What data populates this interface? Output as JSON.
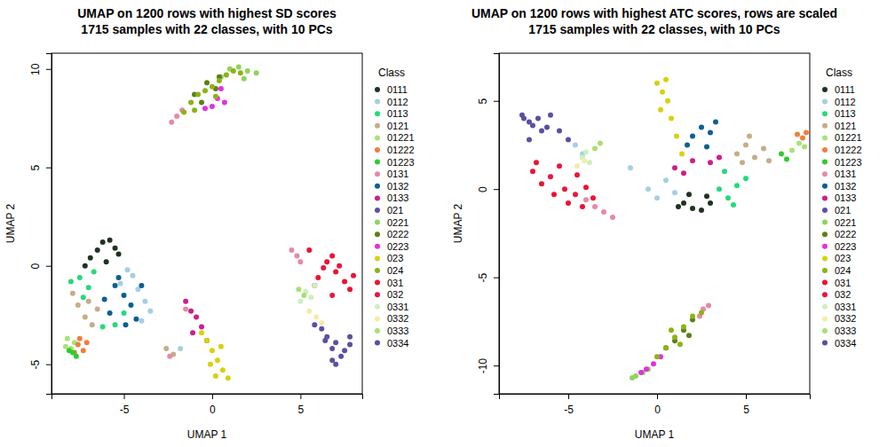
{
  "chart_data": [
    {
      "type": "scatter",
      "title": "UMAP on 1200 rows with highest SD scores",
      "subtitle": "1715 samples with 22 classes, with 10 PCs",
      "x_label": "UMAP 1",
      "y_label": "UMAP 2",
      "legend_title": "Class",
      "legend": "right",
      "marker": "circle",
      "xlim": [
        -9.1,
        8.5
      ],
      "ylim": [
        -6.5,
        10.8
      ],
      "xticks": [
        -5,
        0,
        5
      ],
      "yticks": [
        -5,
        0,
        5,
        10
      ],
      "series": [
        {
          "name": "0111",
          "color": "#1f3320",
          "x": [
            -6.2,
            -5.8,
            -5.5,
            -6.5,
            -6.9,
            -5.3,
            -6.0,
            -7.2
          ],
          "values": [
            1.2,
            1.3,
            0.9,
            0.8,
            0.4,
            0.6,
            0.2,
            0.0
          ]
        },
        {
          "name": "0112",
          "color": "#a6cee3",
          "x": [
            -4.5,
            -4.2,
            -3.8,
            -4.8,
            -3.5,
            -4.0,
            -1.8,
            -5.2
          ],
          "values": [
            -0.5,
            -1.2,
            -1.8,
            -0.2,
            -2.3,
            -2.8,
            -4.2,
            -0.9
          ]
        },
        {
          "name": "0113",
          "color": "#26d97a",
          "x": [
            -7.5,
            -7.0,
            -6.7,
            -8.0,
            -7.3,
            -5.5,
            -6.2,
            -5.0
          ],
          "values": [
            -0.6,
            -1.1,
            -0.3,
            -0.8,
            -1.6,
            -3.0,
            -3.1,
            -2.4
          ]
        },
        {
          "name": "0121",
          "color": "#c4ae88",
          "x": [
            -7.6,
            -7.2,
            -6.8,
            -7.9,
            -6.5,
            -7.0,
            -2.6,
            -2.2
          ],
          "values": [
            -2.0,
            -2.6,
            -3.0,
            -1.4,
            -2.2,
            -1.8,
            -4.2,
            -4.5
          ]
        },
        {
          "name": "01221",
          "color": "#a8e37a",
          "x": [
            -8.2,
            -8.0,
            -7.8,
            -8.3
          ],
          "values": [
            -3.7,
            -4.2,
            -3.9,
            -4.1
          ]
        },
        {
          "name": "01222",
          "color": "#f07f3a",
          "x": [
            -7.6,
            -7.3,
            -7.8,
            -7.1,
            -7.5
          ],
          "values": [
            -4.0,
            -4.3,
            -4.4,
            -3.9,
            -3.7
          ]
        },
        {
          "name": "01223",
          "color": "#2fcc2f",
          "x": [
            -7.9,
            -7.7,
            -8.1
          ],
          "values": [
            -4.4,
            -4.6,
            -4.3
          ]
        },
        {
          "name": "0131",
          "color": "#e58aa6",
          "x": [
            -2.3,
            -2.0,
            -1.7,
            4.5,
            4.8,
            5.0,
            -2.4,
            -1.5
          ],
          "values": [
            7.3,
            7.6,
            7.9,
            0.8,
            0.5,
            0.2,
            -4.6,
            -2.2
          ]
        },
        {
          "name": "0132",
          "color": "#0a5f94",
          "x": [
            -5.5,
            -5.0,
            -4.6,
            -5.8,
            -4.3,
            -4.9,
            -5.3,
            -6.1,
            -4.0
          ],
          "values": [
            -1.0,
            -1.5,
            -2.0,
            -2.4,
            -2.7,
            -3.0,
            -0.6,
            -1.7,
            -1.0
          ]
        },
        {
          "name": "0133",
          "color": "#cc1f8a",
          "x": [
            -1.5,
            -1.2,
            -0.9,
            -0.6,
            -1.1,
            -0.3
          ],
          "values": [
            -1.8,
            -2.3,
            -2.6,
            -3.1,
            -3.4,
            -3.8
          ]
        },
        {
          "name": "021",
          "color": "#5e4fa2",
          "x": [
            6.5,
            7.0,
            7.5,
            6.2,
            6.8,
            7.8,
            5.8
          ],
          "values": [
            -3.6,
            -3.9,
            -4.3,
            -3.2,
            -4.8,
            -3.6,
            -3.0
          ]
        },
        {
          "name": "0221",
          "color": "#8fd45a",
          "x": [
            1.0,
            1.5,
            2.0,
            2.5,
            0.5,
            1.8
          ],
          "values": [
            10.0,
            10.1,
            9.9,
            9.8,
            9.6,
            9.5
          ]
        },
        {
          "name": "0222",
          "color": "#5c7f1a",
          "x": [
            -1.0,
            -0.3,
            0.4,
            -0.6,
            0.2
          ],
          "values": [
            8.7,
            9.3,
            9.6,
            8.3,
            9.0
          ]
        },
        {
          "name": "0223",
          "color": "#e032e0",
          "x": [
            0.0,
            0.3,
            0.7,
            -0.4,
            0.5
          ],
          "values": [
            8.1,
            8.5,
            8.3,
            8.0,
            9.0
          ]
        },
        {
          "name": "023",
          "color": "#d9d010",
          "x": [
            -0.3,
            0.0,
            0.3,
            0.6,
            -0.6,
            0.2,
            0.9,
            -0.1,
            0.5
          ],
          "values": [
            -3.8,
            -4.3,
            -4.8,
            -5.3,
            -3.4,
            -5.6,
            -5.7,
            -5.0,
            -4.1
          ]
        },
        {
          "name": "024",
          "color": "#8cb314",
          "x": [
            -1.6,
            -1.2,
            -0.8,
            -0.4,
            0.0,
            0.4,
            0.8,
            1.2,
            -1.0,
            0.2,
            1.6
          ],
          "values": [
            7.8,
            8.3,
            8.7,
            8.9,
            9.1,
            9.4,
            9.7,
            9.9,
            7.9,
            8.6,
            9.8
          ]
        },
        {
          "name": "031",
          "color": "#ee1133",
          "x": [
            6.5,
            7.0,
            7.5,
            6.0,
            7.8,
            6.8,
            5.5
          ],
          "values": [
            0.2,
            -0.3,
            -0.8,
            -0.6,
            -1.2,
            0.5,
            0.8
          ]
        },
        {
          "name": "032",
          "color": "#e8163d",
          "x": [
            6.3,
            7.2,
            5.8,
            8.0,
            6.8
          ],
          "values": [
            -0.1,
            0.0,
            -1.0,
            -0.5,
            -1.5
          ]
        },
        {
          "name": "0331",
          "color": "#ccf0c0",
          "x": [
            5.3,
            5.6,
            5.0,
            5.8
          ],
          "values": [
            -1.3,
            -1.6,
            -1.8,
            -1.0
          ]
        },
        {
          "name": "0332",
          "color": "#f5eba8",
          "x": [
            5.5,
            5.9,
            6.2
          ],
          "values": [
            -2.3,
            -2.6,
            -2.9
          ]
        },
        {
          "name": "0333",
          "color": "#a8e070",
          "x": [
            5.2,
            4.9
          ],
          "values": [
            -1.5,
            -1.2
          ]
        },
        {
          "name": "0334",
          "color": "#5d4ea0",
          "x": [
            6.8,
            7.3,
            7.8,
            6.4,
            7.0
          ],
          "values": [
            -4.2,
            -4.6,
            -4.0,
            -3.8,
            -5.0
          ]
        }
      ]
    },
    {
      "type": "scatter",
      "title": "UMAP on 1200 rows with highest ATC scores, rows are scaled",
      "subtitle": "1715 samples with 22 classes, with 10 PCs",
      "x_label": "UMAP 1",
      "y_label": "UMAP 2",
      "legend_title": "Class",
      "legend": "right",
      "marker": "circle",
      "xlim": [
        -8.9,
        8.6
      ],
      "ylim": [
        -11.6,
        7.7
      ],
      "xticks": [
        -5,
        0,
        5
      ],
      "yticks": [
        -10,
        -5,
        0,
        5
      ],
      "series": [
        {
          "name": "0111",
          "color": "#1f3320",
          "x": [
            1.5,
            2.0,
            2.5,
            3.0,
            1.8,
            2.8,
            1.2
          ],
          "values": [
            -0.8,
            -1.1,
            -1.2,
            -0.8,
            -0.3,
            -0.4,
            -1.0
          ]
        },
        {
          "name": "0112",
          "color": "#a6cee3",
          "x": [
            -4.6,
            -4.2,
            -0.5,
            0.0,
            0.5,
            1.0,
            -1.5
          ],
          "values": [
            2.5,
            2.0,
            0.0,
            -0.5,
            0.5,
            -0.2,
            1.2
          ]
        },
        {
          "name": "0113",
          "color": "#26d97a",
          "x": [
            3.5,
            4.0,
            4.5,
            5.0,
            3.8,
            4.3
          ],
          "values": [
            0.0,
            -0.5,
            0.2,
            0.6,
            1.0,
            -0.9
          ]
        },
        {
          "name": "0121",
          "color": "#c4ae88",
          "x": [
            4.5,
            5.0,
            5.5,
            6.0,
            5.2,
            4.8,
            6.3
          ],
          "values": [
            2.0,
            2.5,
            1.8,
            2.3,
            3.0,
            1.5,
            1.6
          ]
        },
        {
          "name": "01221",
          "color": "#a8e37a",
          "x": [
            7.6,
            8.0,
            8.3
          ],
          "values": [
            2.2,
            2.6,
            2.4
          ]
        },
        {
          "name": "01222",
          "color": "#f07f3a",
          "x": [
            7.9,
            8.2,
            8.4
          ],
          "values": [
            3.1,
            2.9,
            3.2
          ]
        },
        {
          "name": "01223",
          "color": "#2fcc2f",
          "x": [
            7.0,
            7.3
          ],
          "values": [
            2.0,
            1.7
          ]
        },
        {
          "name": "0131",
          "color": "#e58aa6",
          "x": [
            -3.5,
            -3.0,
            -2.5,
            -4.0,
            2.6,
            2.9,
            2.4
          ],
          "values": [
            -1.0,
            -1.3,
            -1.6,
            -0.6,
            -6.8,
            -6.6,
            -7.2
          ]
        },
        {
          "name": "0132",
          "color": "#0a5f94",
          "x": [
            2.0,
            2.5,
            3.0,
            1.7,
            2.8,
            3.3
          ],
          "values": [
            3.0,
            3.5,
            3.2,
            2.5,
            2.4,
            3.8
          ]
        },
        {
          "name": "0133",
          "color": "#cc1f8a",
          "x": [
            1.0,
            1.5,
            3.0,
            3.5,
            2.0
          ],
          "values": [
            1.2,
            0.9,
            1.5,
            1.8,
            1.6
          ]
        },
        {
          "name": "021",
          "color": "#5e4fa2",
          "x": [
            -7.5,
            -7.0,
            -6.5,
            -6.0,
            -7.2
          ],
          "values": [
            4.0,
            3.6,
            3.3,
            4.2,
            2.8
          ]
        },
        {
          "name": "0221",
          "color": "#8fd45a",
          "x": [
            -1.2,
            -0.8,
            -1.4,
            -0.5
          ],
          "values": [
            -10.6,
            -10.4,
            -10.7,
            -10.2
          ]
        },
        {
          "name": "0222",
          "color": "#5c7f1a",
          "x": [
            1.0,
            1.5,
            2.0,
            0.5,
            1.8
          ],
          "values": [
            -8.6,
            -8.0,
            -7.4,
            -9.0,
            -8.3
          ]
        },
        {
          "name": "0223",
          "color": "#e032e0",
          "x": [
            -0.6,
            -0.2,
            0.2,
            -0.9
          ],
          "values": [
            -10.2,
            -9.9,
            -9.5,
            -10.4
          ]
        },
        {
          "name": "023",
          "color": "#d9d010",
          "x": [
            0.0,
            0.3,
            0.6,
            0.2,
            0.8,
            1.1,
            1.4,
            0.5
          ],
          "values": [
            6.0,
            5.5,
            5.0,
            4.5,
            4.0,
            3.0,
            2.0,
            6.2
          ]
        },
        {
          "name": "024",
          "color": "#8cb314",
          "x": [
            0.0,
            0.5,
            1.0,
            1.5,
            2.0,
            2.5,
            0.8,
            1.3
          ],
          "values": [
            -9.5,
            -9.0,
            -8.4,
            -7.8,
            -7.2,
            -7.0,
            -8.0,
            -8.8
          ]
        },
        {
          "name": "031",
          "color": "#ee1133",
          "x": [
            -7.0,
            -6.5,
            -5.8,
            -5.0,
            -4.2,
            -3.6,
            -6.8,
            -4.0
          ],
          "values": [
            1.0,
            0.3,
            -0.3,
            -0.8,
            -1.0,
            -0.5,
            1.5,
            0.1
          ]
        },
        {
          "name": "032",
          "color": "#e8163d",
          "x": [
            -6.0,
            -5.2,
            -4.6,
            -4.5,
            -5.5
          ],
          "values": [
            0.7,
            0.0,
            -0.3,
            0.8,
            1.3
          ]
        },
        {
          "name": "0331",
          "color": "#ccf0c0",
          "x": [
            -4.2,
            -4.0,
            -3.8
          ],
          "values": [
            1.8,
            2.1,
            1.5
          ]
        },
        {
          "name": "0332",
          "color": "#f5eba8",
          "x": [
            -4.5,
            -4.1
          ],
          "values": [
            1.3,
            1.6
          ]
        },
        {
          "name": "0333",
          "color": "#a8e070",
          "x": [
            -3.5,
            -3.2
          ],
          "values": [
            2.3,
            2.6
          ]
        },
        {
          "name": "0334",
          "color": "#5d4ea0",
          "x": [
            -7.6,
            -7.2,
            -6.7,
            -6.2,
            -5.5,
            -5.0
          ],
          "values": [
            4.2,
            3.8,
            4.0,
            3.5,
            3.3,
            2.8
          ]
        }
      ]
    }
  ]
}
